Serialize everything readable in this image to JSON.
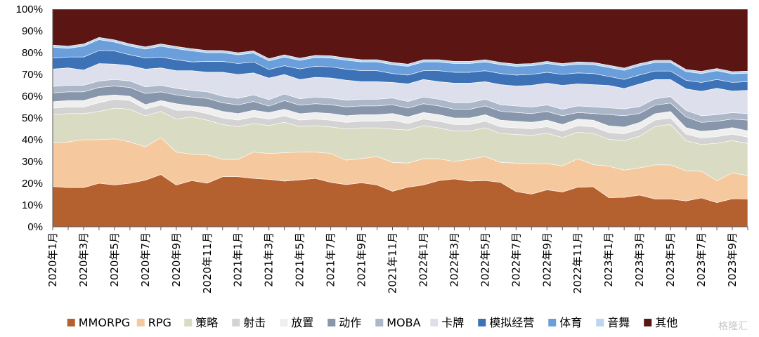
{
  "watermark": "格隆汇",
  "chart_data": {
    "type": "area",
    "stacked": true,
    "percent": true,
    "ylim": [
      0,
      100
    ],
    "yticks": [
      "0%",
      "10%",
      "20%",
      "30%",
      "40%",
      "50%",
      "60%",
      "70%",
      "80%",
      "90%",
      "100%"
    ],
    "x": [
      "2020年1月",
      "2020年2月",
      "2020年3月",
      "2020年4月",
      "2020年5月",
      "2020年6月",
      "2020年7月",
      "2020年8月",
      "2020年9月",
      "2020年10月",
      "2020年11月",
      "2020年12月",
      "2021年1月",
      "2021年2月",
      "2021年3月",
      "2021年4月",
      "2021年5月",
      "2021年6月",
      "2021年7月",
      "2021年8月",
      "2021年9月",
      "2021年10月",
      "2021年11月",
      "2021年12月",
      "2022年1月",
      "2022年2月",
      "2022年3月",
      "2022年4月",
      "2022年5月",
      "2022年6月",
      "2022年7月",
      "2022年8月",
      "2022年9月",
      "2022年10月",
      "2022年11月",
      "2022年12月",
      "2023年1月",
      "2023年2月",
      "2023年3月",
      "2023年4月",
      "2023年5月",
      "2023年6月",
      "2023年7月",
      "2023年8月",
      "2023年9月",
      "2023年10月"
    ],
    "xtick_labels": [
      "2020年1月",
      "2020年3月",
      "2020年5月",
      "2020年7月",
      "2020年9月",
      "2020年11月",
      "2021年1月",
      "2021年3月",
      "2021年5月",
      "2021年7月",
      "2021年9月",
      "2021年11月",
      "2022年1月",
      "2022年3月",
      "2022年5月",
      "2022年7月",
      "2022年9月",
      "2022年11月",
      "2023年1月",
      "2023年3月",
      "2023年5月",
      "2023年7月",
      "2023年9月"
    ],
    "legend_position": "bottom",
    "series": [
      {
        "name": "MMORPG",
        "color": "#b5602f",
        "values": [
          18.5,
          18,
          18,
          20,
          19,
          20,
          21,
          24,
          19,
          21,
          20,
          23,
          23,
          22,
          22,
          21,
          22,
          22,
          20,
          19,
          20,
          19,
          16,
          18,
          19,
          21,
          22,
          21,
          21,
          20,
          16,
          15,
          17,
          16,
          18,
          18,
          13,
          13,
          14,
          13,
          13,
          12,
          13,
          11,
          13,
          13
        ]
      },
      {
        "name": "RPG",
        "color": "#f6c89d",
        "values": [
          20,
          21,
          22,
          20,
          21,
          19,
          15,
          17,
          15,
          12,
          13,
          8,
          8,
          12,
          12,
          13,
          13,
          12,
          13,
          11,
          11,
          13,
          13,
          11,
          12,
          10,
          8,
          10,
          11,
          9,
          13,
          14,
          12,
          12,
          13,
          10,
          14,
          12,
          12,
          16,
          16,
          14,
          12,
          10,
          12,
          11
        ]
      },
      {
        "name": "策略",
        "color": "#d9dbc2",
        "values": [
          13,
          13,
          12,
          13,
          14,
          15,
          14,
          12,
          15,
          17,
          16,
          16,
          15,
          13,
          13,
          14,
          12,
          12,
          12,
          14,
          14,
          13,
          15,
          15,
          15,
          14,
          14,
          13,
          13,
          13,
          13,
          13,
          14,
          13,
          12,
          14,
          12,
          13,
          14,
          18,
          19,
          14,
          12,
          17,
          15,
          15
        ]
      },
      {
        "name": "射击",
        "color": "#d3d3d3",
        "values": [
          3,
          3,
          3,
          4,
          4,
          4,
          3,
          3,
          4,
          3,
          3,
          3,
          3,
          3,
          3,
          3,
          3,
          3,
          3,
          3,
          3,
          3,
          4,
          3,
          3,
          3,
          3,
          3,
          3,
          3,
          3,
          3,
          3,
          3,
          3,
          3,
          3,
          3,
          3,
          3,
          3,
          3,
          3,
          3,
          3,
          3
        ]
      },
      {
        "name": "放置",
        "color": "#efefef",
        "values": [
          3,
          3,
          3,
          3,
          2,
          2,
          2,
          2,
          3,
          2,
          3,
          3,
          3,
          3,
          3,
          3,
          3,
          3,
          3,
          3,
          3,
          3,
          3,
          3,
          3,
          3,
          3,
          3,
          3,
          3,
          3,
          3,
          3,
          3,
          3,
          3,
          3,
          3,
          3,
          3,
          3,
          3,
          3,
          3,
          3,
          3
        ]
      },
      {
        "name": "动作",
        "color": "#8896ab",
        "values": [
          4,
          4,
          4,
          4,
          4,
          4,
          5,
          4,
          4,
          4,
          4,
          4,
          4,
          4,
          3,
          4,
          4,
          4,
          4,
          4,
          4,
          4,
          4,
          4,
          4,
          4,
          4,
          4,
          4,
          4,
          4,
          4,
          4,
          4,
          3,
          3,
          5,
          5,
          4,
          4,
          4,
          5,
          4,
          4,
          4,
          5
        ]
      },
      {
        "name": "MOBA",
        "color": "#acb7c9",
        "values": [
          3,
          3,
          3,
          3,
          3,
          3,
          3,
          3,
          3,
          3,
          3,
          3,
          3,
          3,
          3,
          3,
          3,
          3,
          3,
          3,
          3,
          3,
          3,
          3,
          3,
          3,
          3,
          3,
          3,
          3,
          3,
          3,
          3,
          3,
          3,
          3,
          3,
          3,
          3,
          3,
          3,
          3,
          3,
          3,
          3,
          3
        ]
      },
      {
        "name": "卡牌",
        "color": "#dde0ec",
        "values": [
          8,
          8,
          7,
          8,
          7,
          7,
          8,
          8,
          8,
          9,
          9,
          11,
          11,
          10,
          10,
          9,
          9,
          9,
          9,
          9,
          8,
          8,
          7,
          8,
          8,
          8,
          9,
          9,
          8,
          9,
          9,
          10,
          10,
          11,
          10,
          10,
          10,
          9,
          10,
          9,
          8,
          10,
          11,
          12,
          10,
          11
        ]
      },
      {
        "name": "模拟经营",
        "color": "#3d73b6",
        "values": [
          5,
          5,
          6,
          6,
          6,
          5,
          5,
          5,
          5,
          4,
          5,
          5,
          5,
          5,
          4,
          4,
          5,
          5,
          5,
          5,
          5,
          5,
          4,
          4,
          4,
          5,
          5,
          5,
          5,
          5,
          5,
          5,
          5,
          5,
          5,
          5,
          4,
          4,
          4,
          4,
          4,
          4,
          4,
          4,
          4,
          4
        ]
      },
      {
        "name": "体育",
        "color": "#6b9fdb",
        "values": [
          5,
          4,
          5,
          5,
          4,
          4,
          4,
          5,
          5,
          5,
          4,
          4,
          4,
          4,
          4,
          4,
          4,
          4,
          4,
          4,
          4,
          4,
          4,
          4,
          4,
          4,
          4,
          4,
          4,
          4,
          4,
          4,
          4,
          4,
          4,
          4,
          4,
          4,
          4,
          4,
          4,
          4,
          4,
          4,
          4,
          4
        ]
      },
      {
        "name": "音舞",
        "color": "#bcd6ef",
        "values": [
          1,
          1,
          1,
          1,
          1,
          1,
          1,
          1,
          1,
          1,
          1,
          1,
          1,
          1,
          1,
          1,
          1,
          1,
          1,
          1,
          1,
          1,
          1,
          1,
          1,
          1,
          1,
          1,
          1,
          1,
          1,
          1,
          1,
          1,
          1,
          1,
          1,
          1,
          1,
          1,
          1,
          1,
          1,
          1,
          1,
          1
        ]
      },
      {
        "name": "其他",
        "color": "#5b1513",
        "values": [
          16.5,
          17,
          16,
          13,
          14,
          16,
          17,
          16,
          17,
          18,
          19,
          19,
          20,
          19,
          23,
          21,
          23,
          21,
          21,
          22,
          23,
          23,
          24,
          25,
          23,
          23,
          24,
          24,
          23,
          24,
          25,
          25,
          24,
          25,
          24,
          24,
          25,
          26,
          24,
          24,
          24,
          28,
          28,
          27,
          29,
          29
        ]
      }
    ]
  }
}
